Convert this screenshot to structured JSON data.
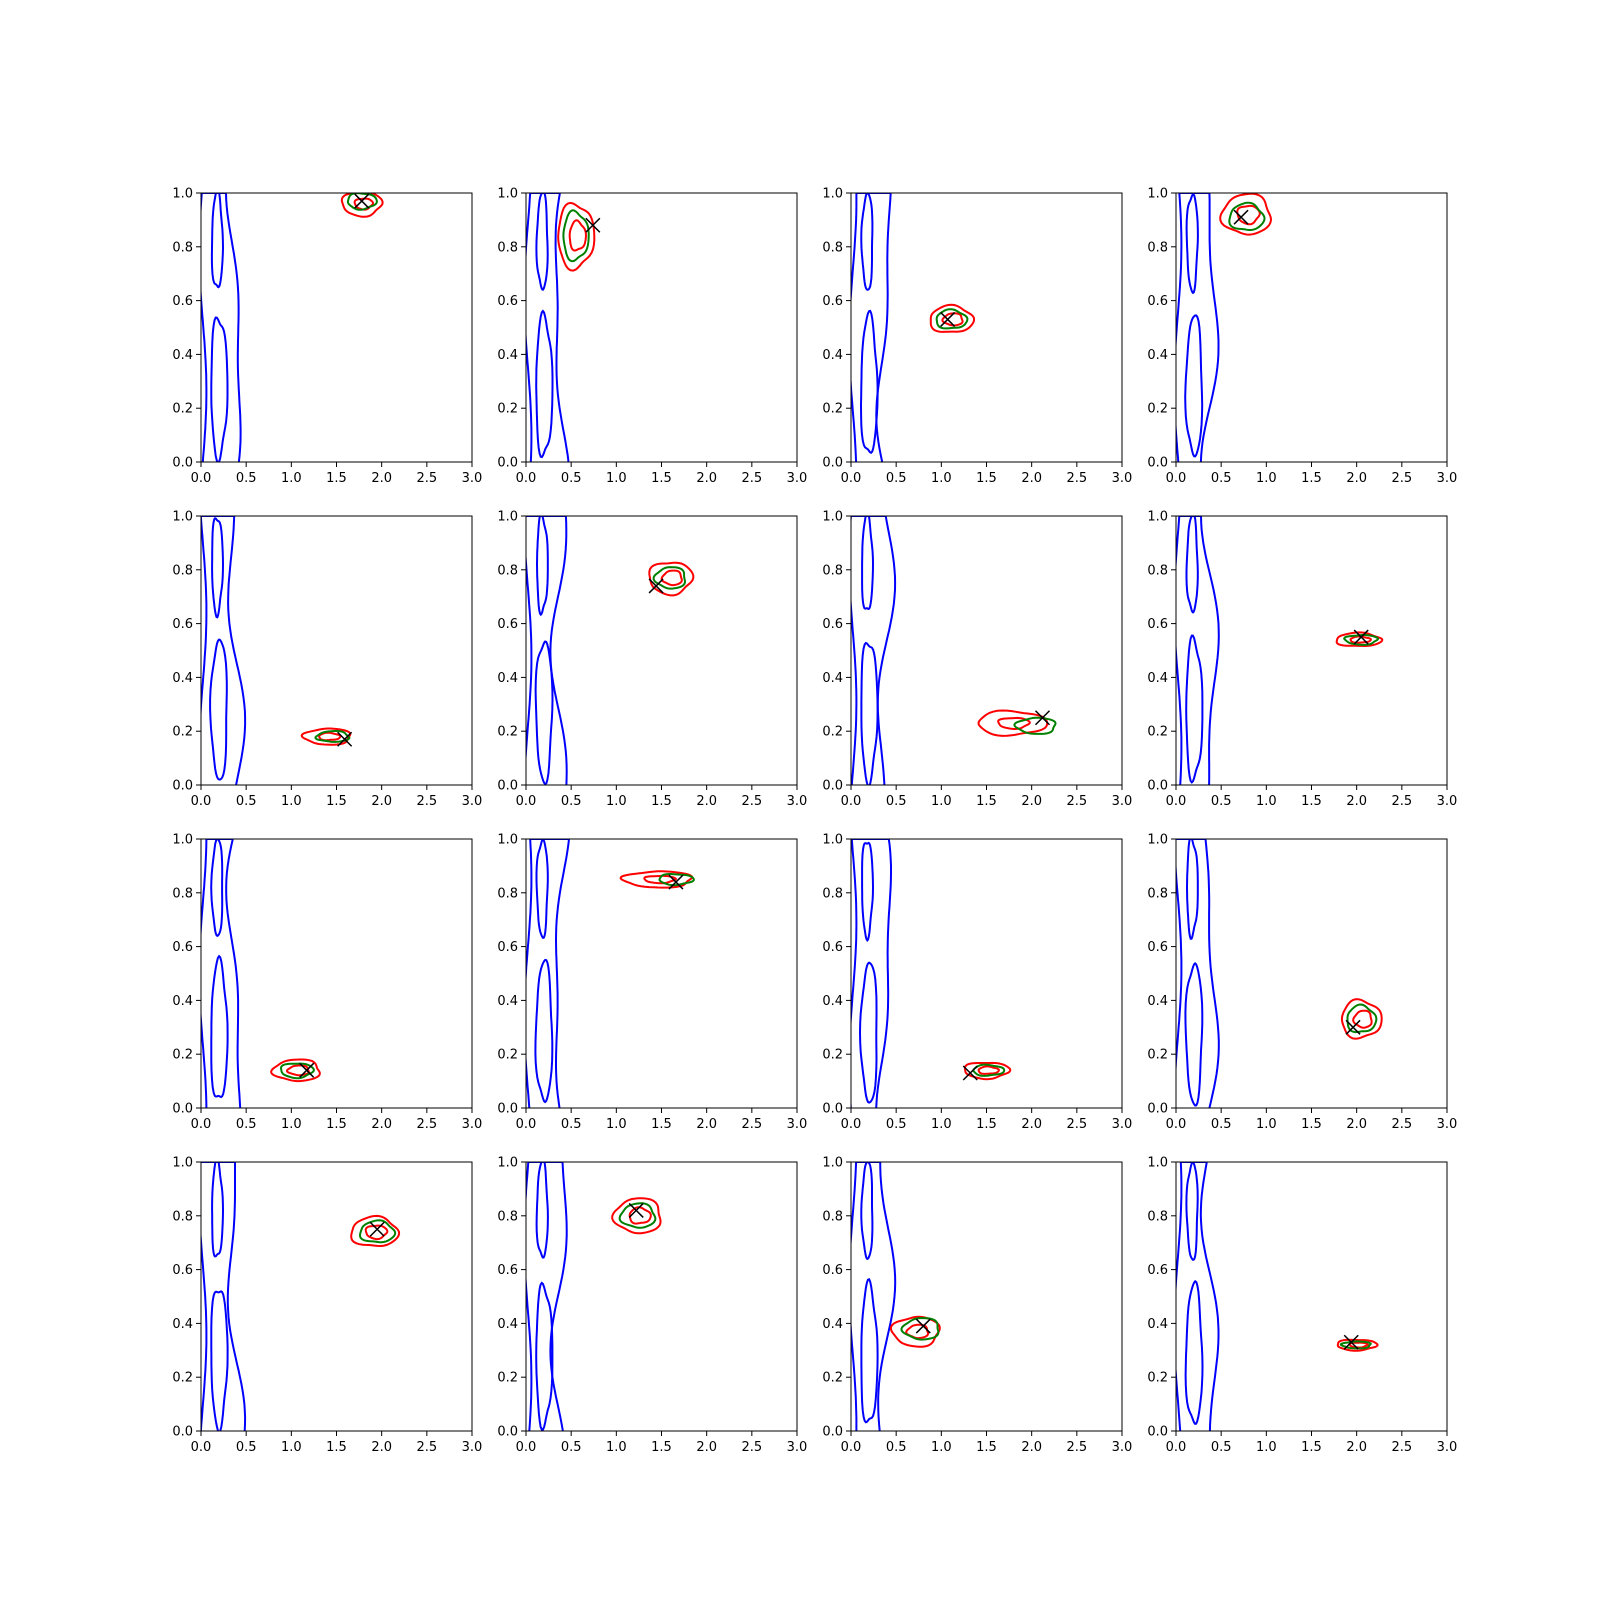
{
  "chart_data": {
    "type": "contour",
    "layout": "4x4 grid of subplots",
    "xlim": [
      0,
      3
    ],
    "ylim": [
      0,
      1
    ],
    "x_ticks": [
      "0.0",
      "0.5",
      "1.0",
      "1.5",
      "2.0",
      "2.5",
      "3.0"
    ],
    "y_ticks": [
      "0.0",
      "0.2",
      "0.4",
      "0.6",
      "0.8",
      "1.0"
    ],
    "grid": false,
    "legend": "none",
    "colors": {
      "band": "#0000ff",
      "red": "#ff0000",
      "green": "#008000",
      "marker": "#000000"
    },
    "panels": [
      {
        "marker": [
          1.78,
          0.97
        ],
        "red": [
          1.78,
          0.96,
          0.22,
          0.045
        ],
        "green": [
          1.78,
          0.97,
          0.16,
          0.03
        ],
        "spread": 0.05
      },
      {
        "marker": [
          0.74,
          0.88
        ],
        "red": [
          0.55,
          0.84,
          0.2,
          0.12
        ],
        "green": [
          0.55,
          0.84,
          0.14,
          0.09
        ],
        "spread": 0.05
      },
      {
        "marker": [
          1.07,
          0.53
        ],
        "red": [
          1.11,
          0.53,
          0.24,
          0.05
        ],
        "green": [
          1.11,
          0.53,
          0.17,
          0.035
        ],
        "spread": 0.05
      },
      {
        "marker": [
          0.72,
          0.91
        ],
        "red": [
          0.78,
          0.92,
          0.27,
          0.075
        ],
        "green": [
          0.78,
          0.91,
          0.19,
          0.05
        ],
        "spread": 0.05
      },
      {
        "marker": [
          1.59,
          0.17
        ],
        "red": [
          1.4,
          0.18,
          0.26,
          0.03
        ],
        "green": [
          1.46,
          0.18,
          0.18,
          0.02
        ],
        "spread": 0.05
      },
      {
        "marker": [
          1.44,
          0.74
        ],
        "red": [
          1.6,
          0.77,
          0.24,
          0.06
        ],
        "green": [
          1.6,
          0.77,
          0.17,
          0.04
        ],
        "spread": 0.05
      },
      {
        "marker": [
          2.12,
          0.25
        ],
        "red": [
          1.78,
          0.23,
          0.38,
          0.045
        ],
        "green": [
          2.05,
          0.22,
          0.22,
          0.03
        ],
        "spread": 0.08
      },
      {
        "marker": [
          2.05,
          0.55
        ],
        "red": [
          2.02,
          0.54,
          0.25,
          0.025
        ],
        "green": [
          2.05,
          0.54,
          0.18,
          0.018
        ],
        "spread": 0.05
      },
      {
        "marker": [
          1.17,
          0.14
        ],
        "red": [
          1.06,
          0.14,
          0.26,
          0.04
        ],
        "green": [
          1.06,
          0.14,
          0.18,
          0.027
        ],
        "spread": 0.05
      },
      {
        "marker": [
          1.66,
          0.84
        ],
        "red": [
          1.46,
          0.85,
          0.38,
          0.03
        ],
        "green": [
          1.66,
          0.85,
          0.19,
          0.02
        ],
        "spread": 0.07
      },
      {
        "marker": [
          1.32,
          0.13
        ],
        "red": [
          1.5,
          0.14,
          0.25,
          0.03
        ],
        "green": [
          1.52,
          0.14,
          0.17,
          0.02
        ],
        "spread": 0.05
      },
      {
        "marker": [
          1.96,
          0.3
        ],
        "red": [
          2.05,
          0.33,
          0.22,
          0.07
        ],
        "green": [
          2.05,
          0.33,
          0.16,
          0.05
        ],
        "spread": 0.05
      },
      {
        "marker": [
          1.95,
          0.75
        ],
        "red": [
          1.92,
          0.74,
          0.26,
          0.055
        ],
        "green": [
          1.95,
          0.74,
          0.19,
          0.04
        ],
        "spread": 0.05
      },
      {
        "marker": [
          1.22,
          0.82
        ],
        "red": [
          1.24,
          0.8,
          0.26,
          0.065
        ],
        "green": [
          1.24,
          0.8,
          0.19,
          0.045
        ],
        "spread": 0.05
      },
      {
        "marker": [
          0.8,
          0.39
        ],
        "red": [
          0.72,
          0.37,
          0.26,
          0.055
        ],
        "green": [
          0.78,
          0.38,
          0.2,
          0.04
        ],
        "spread": 0.05
      },
      {
        "marker": [
          1.94,
          0.33
        ],
        "red": [
          2.0,
          0.32,
          0.22,
          0.02
        ],
        "green": [
          2.0,
          0.32,
          0.16,
          0.013
        ],
        "spread": 0.05
      }
    ]
  }
}
